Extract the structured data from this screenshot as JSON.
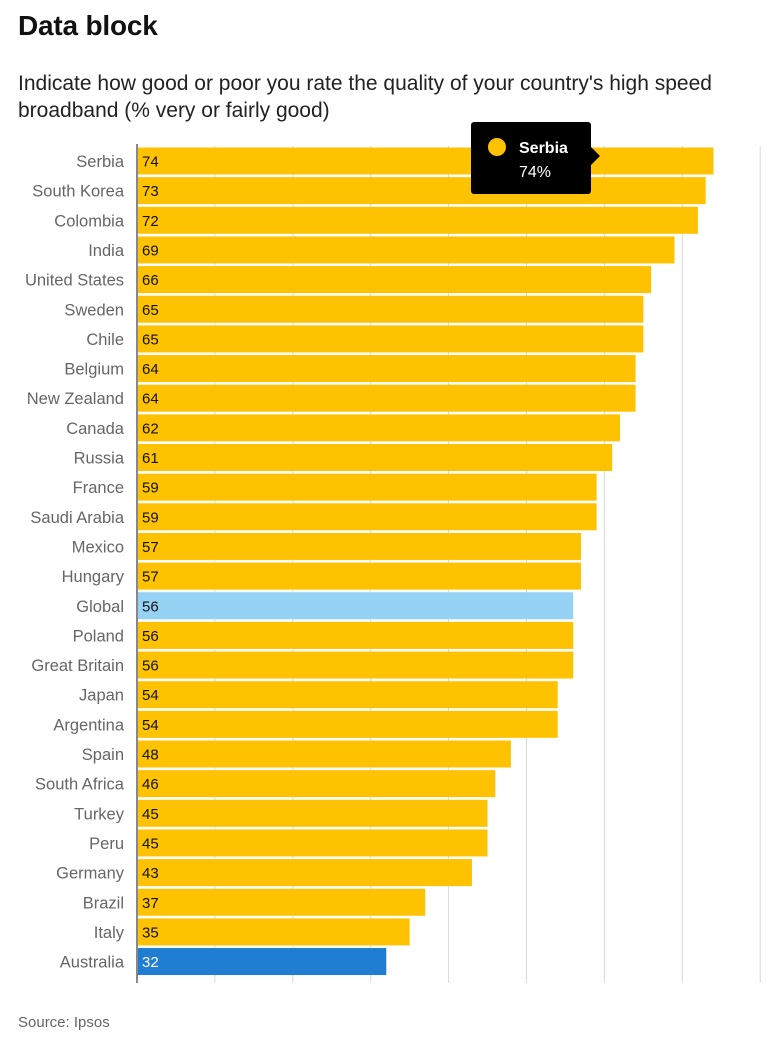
{
  "header": {
    "title": "Data block",
    "subtitle": "Indicate how good or poor you rate the quality of your country's high speed broadband (% very or fairly good)"
  },
  "footer": {
    "source": "Source: Ipsos"
  },
  "colors": {
    "default": "#FEC200",
    "global": "#95D2F4",
    "highlight": "#1F7ED2",
    "tooltip_bg": "#000000",
    "grid": "#d9d9d9",
    "axis": "#888888"
  },
  "tooltip": {
    "category": "Serbia",
    "value_label": "74%"
  },
  "chart_data": {
    "type": "bar",
    "orientation": "horizontal",
    "title": "Indicate how good or poor you rate the quality of your country's high speed broadband (% very or fairly good)",
    "xlabel": "",
    "ylabel": "",
    "xlim": [
      0,
      80
    ],
    "grid": true,
    "categories": [
      "Serbia",
      "South Korea",
      "Colombia",
      "India",
      "United States",
      "Sweden",
      "Chile",
      "Belgium",
      "New Zealand",
      "Canada",
      "Russia",
      "France",
      "Saudi Arabia",
      "Mexico",
      "Hungary",
      "Global",
      "Poland",
      "Great Britain",
      "Japan",
      "Argentina",
      "Spain",
      "South Africa",
      "Turkey",
      "Peru",
      "Germany",
      "Brazil",
      "Italy",
      "Australia"
    ],
    "values": [
      74,
      73,
      72,
      69,
      66,
      65,
      65,
      64,
      64,
      62,
      61,
      59,
      59,
      57,
      57,
      56,
      56,
      56,
      54,
      54,
      48,
      46,
      45,
      45,
      43,
      37,
      35,
      32
    ],
    "highlight": {
      "Global": "global",
      "Australia": "highlight"
    }
  }
}
